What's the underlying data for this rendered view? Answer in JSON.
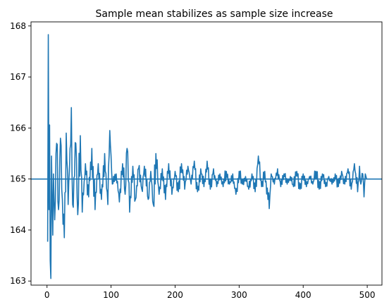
{
  "chart_data": {
    "type": "line",
    "title": "Sample mean stabilizes as sample size increase",
    "xlabel": "",
    "ylabel": "",
    "xlim": [
      -25,
      523
    ],
    "ylim": [
      162.92,
      168.08
    ],
    "xticks": [
      0,
      100,
      200,
      300,
      400,
      500
    ],
    "yticks": [
      163,
      164,
      165,
      166,
      167,
      168
    ],
    "grid": false,
    "reference_line": {
      "y": 165.0,
      "color": "#1f77b4"
    },
    "series": [
      {
        "color": "#1f77b4",
        "key_points": [
          [
            1,
            163.77
          ],
          [
            2,
            167.83
          ],
          [
            3,
            164.4
          ],
          [
            4,
            166.06
          ],
          [
            5,
            163.4
          ],
          [
            6,
            163.05
          ],
          [
            7,
            165.45
          ],
          [
            8,
            164.6
          ],
          [
            9,
            163.9
          ],
          [
            10,
            165.1
          ],
          [
            12,
            164.2
          ],
          [
            15,
            165.7
          ],
          [
            18,
            164.4
          ],
          [
            21,
            165.8
          ],
          [
            24,
            164.6
          ],
          [
            27,
            163.85
          ],
          [
            30,
            165.9
          ],
          [
            33,
            164.5
          ],
          [
            36,
            165.6
          ],
          [
            38,
            166.4
          ],
          [
            40,
            164.5
          ],
          [
            45,
            165.7
          ],
          [
            48,
            164.3
          ],
          [
            52,
            165.85
          ],
          [
            55,
            164.35
          ],
          [
            60,
            165.3
          ],
          [
            65,
            164.65
          ],
          [
            70,
            165.6
          ],
          [
            75,
            164.4
          ],
          [
            80,
            165.3
          ],
          [
            85,
            164.6
          ],
          [
            90,
            165.5
          ],
          [
            95,
            164.5
          ],
          [
            98,
            165.95
          ],
          [
            102,
            164.9
          ],
          [
            108,
            165.1
          ],
          [
            113,
            164.55
          ],
          [
            118,
            165.3
          ],
          [
            122,
            164.7
          ],
          [
            125,
            165.6
          ],
          [
            129,
            164.35
          ],
          [
            134,
            165.25
          ],
          [
            138,
            164.6
          ],
          [
            143,
            165.2
          ],
          [
            148,
            164.8
          ],
          [
            152,
            165.25
          ],
          [
            158,
            164.6
          ],
          [
            162,
            165.15
          ],
          [
            166,
            164.5
          ],
          [
            170,
            165.5
          ],
          [
            175,
            164.7
          ],
          [
            180,
            165.2
          ],
          [
            185,
            164.6
          ],
          [
            190,
            165.3
          ],
          [
            195,
            164.7
          ],
          [
            200,
            165.15
          ],
          [
            205,
            164.75
          ],
          [
            210,
            165.3
          ],
          [
            215,
            164.8
          ],
          [
            220,
            165.25
          ],
          [
            225,
            164.9
          ],
          [
            230,
            165.35
          ],
          [
            235,
            164.75
          ],
          [
            240,
            165.2
          ],
          [
            245,
            164.85
          ],
          [
            250,
            165.35
          ],
          [
            255,
            164.8
          ],
          [
            260,
            165.2
          ],
          [
            265,
            164.85
          ],
          [
            270,
            165.1
          ],
          [
            275,
            164.85
          ],
          [
            280,
            165.15
          ],
          [
            285,
            164.9
          ],
          [
            290,
            165.1
          ],
          [
            295,
            164.7
          ],
          [
            300,
            165.15
          ],
          [
            305,
            164.9
          ],
          [
            310,
            165.05
          ],
          [
            315,
            164.8
          ],
          [
            320,
            165.1
          ],
          [
            325,
            164.75
          ],
          [
            330,
            165.45
          ],
          [
            335,
            164.85
          ],
          [
            340,
            165.15
          ],
          [
            345,
            164.6
          ],
          [
            347,
            164.42
          ],
          [
            350,
            165.1
          ],
          [
            355,
            164.9
          ],
          [
            360,
            165.2
          ],
          [
            365,
            164.85
          ],
          [
            370,
            165.1
          ],
          [
            375,
            164.9
          ],
          [
            380,
            165.05
          ],
          [
            385,
            164.85
          ],
          [
            390,
            165.15
          ],
          [
            395,
            164.8
          ],
          [
            400,
            165.1
          ],
          [
            405,
            164.85
          ],
          [
            410,
            165.05
          ],
          [
            415,
            164.9
          ],
          [
            420,
            165.15
          ],
          [
            425,
            164.8
          ],
          [
            430,
            165.1
          ],
          [
            435,
            164.85
          ],
          [
            440,
            165.05
          ],
          [
            445,
            164.9
          ],
          [
            450,
            165.1
          ],
          [
            455,
            164.85
          ],
          [
            460,
            165.15
          ],
          [
            465,
            164.9
          ],
          [
            470,
            165.2
          ],
          [
            475,
            164.8
          ],
          [
            480,
            165.3
          ],
          [
            485,
            164.75
          ],
          [
            488,
            165.25
          ],
          [
            490,
            164.9
          ],
          [
            493,
            165.1
          ],
          [
            495,
            164.65
          ],
          [
            497,
            165.1
          ],
          [
            499,
            165.0
          ]
        ]
      }
    ]
  }
}
